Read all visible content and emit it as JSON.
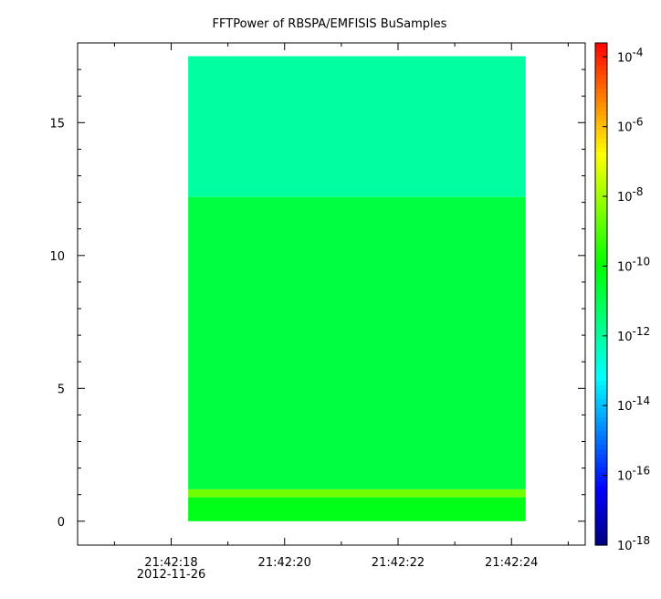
{
  "chart_data": {
    "type": "heatmap",
    "title": "FFTPower of RBSPA/EMFISIS  BuSamples",
    "xlabel": "",
    "ylabel": "",
    "x_axis": {
      "ticks": [
        {
          "seconds": 18,
          "label": "21:42:18",
          "sublabel": "2012-11-26"
        },
        {
          "seconds": 20,
          "label": "21:42:20"
        },
        {
          "seconds": 22,
          "label": "21:42:22"
        },
        {
          "seconds": 24,
          "label": "21:42:24"
        }
      ],
      "minor_ticks": [
        17,
        19,
        21,
        23,
        25
      ],
      "range_seconds": [
        16.35,
        25.3
      ]
    },
    "y_axis": {
      "ticks": [
        0,
        5,
        10,
        15
      ],
      "minor_ticks": [
        1,
        2,
        3,
        4,
        6,
        7,
        8,
        9,
        11,
        12,
        13,
        14,
        16,
        17
      ],
      "range": [
        -0.9,
        18.0
      ]
    },
    "data_extent": {
      "x_seconds": [
        18.3,
        24.25
      ],
      "y": [
        0.0,
        17.5
      ]
    },
    "bands": [
      {
        "y_from": 12.2,
        "y_to": 17.5,
        "log10_power": -12.0
      },
      {
        "y_from": 1.2,
        "y_to": 12.2,
        "log10_power": -10.8
      },
      {
        "y_from": 0.9,
        "y_to": 1.2,
        "log10_power": -8.6
      },
      {
        "y_from": 0.0,
        "y_to": 0.9,
        "log10_power": -10.3
      }
    ],
    "colorbar": {
      "scale": "log",
      "range": [
        -18,
        -3.6
      ],
      "tick_exponents": [
        -4,
        -6,
        -8,
        -10,
        -12,
        -14,
        -16,
        -18
      ],
      "base_label": "10",
      "colors": [
        "#00007f",
        "#0000ff",
        "#0080ff",
        "#00ffff",
        "#00ff80",
        "#00ff00",
        "#80ff00",
        "#ffff00",
        "#ff8000",
        "#ff0000"
      ]
    }
  }
}
